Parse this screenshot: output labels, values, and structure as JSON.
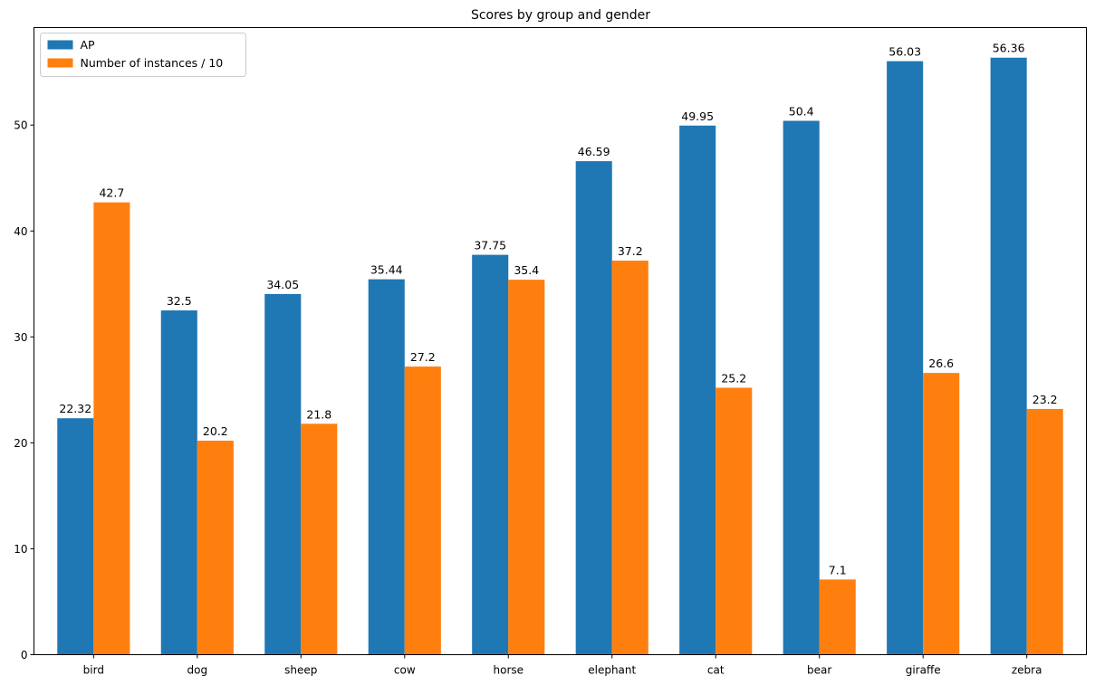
{
  "chart_data": {
    "type": "bar",
    "title": "Scores by group and gender",
    "xlabel": "",
    "ylabel": "",
    "categories": [
      "bird",
      "dog",
      "sheep",
      "cow",
      "horse",
      "elephant",
      "cat",
      "bear",
      "giraffe",
      "zebra"
    ],
    "series": [
      {
        "name": "AP",
        "color": "#1f77b4",
        "values": [
          22.32,
          32.5,
          34.05,
          35.44,
          37.75,
          46.59,
          49.95,
          50.4,
          56.03,
          56.36
        ]
      },
      {
        "name": "Number of instances / 10",
        "color": "#ff7f0e",
        "values": [
          42.7,
          20.2,
          21.8,
          27.2,
          35.4,
          37.2,
          25.2,
          7.1,
          26.6,
          23.2
        ]
      }
    ],
    "ylim": [
      0,
      59.2
    ],
    "yticks": [
      0,
      10,
      20,
      30,
      40,
      50
    ],
    "grid": false,
    "legend_position": "top-left"
  }
}
